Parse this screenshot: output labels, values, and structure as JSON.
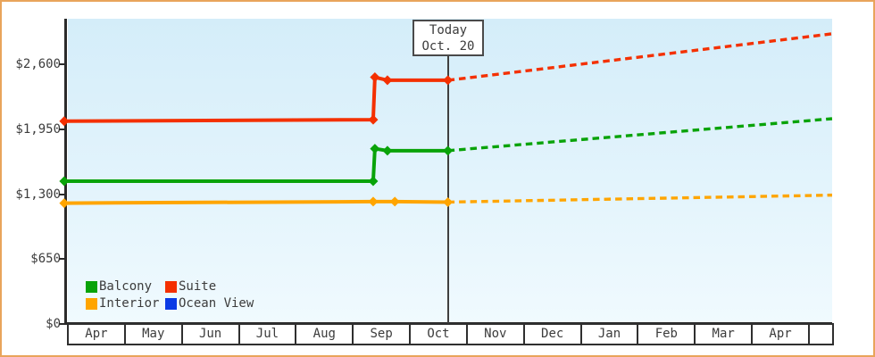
{
  "window": {
    "border_color": "#e9a45b"
  },
  "chart_data": {
    "type": "line",
    "title": "",
    "xlabel": "",
    "ylabel": "",
    "x_categories": [
      "Apr",
      "May",
      "Jun",
      "Jul",
      "Aug",
      "Sep",
      "Oct",
      "Nov",
      "Dec",
      "Jan",
      "Feb",
      "Mar",
      "Apr"
    ],
    "x_unit_note": "point x values are months measured from left edge of first Apr cell",
    "ylim": [
      0,
      3060
    ],
    "y_ticks": [
      {
        "label": "$0",
        "value": 0
      },
      {
        "label": "$650",
        "value": 650
      },
      {
        "label": "$1,300",
        "value": 1300
      },
      {
        "label": "$1,950",
        "value": 1950
      },
      {
        "label": "$2,600",
        "value": 2600
      }
    ],
    "grid": false,
    "legend_position": "bottom-left-inside",
    "today": {
      "line1": "Today",
      "line2": "Oct. 20",
      "month_position": 6.65
    },
    "series": [
      {
        "name": "Balcony",
        "color": "#09a309",
        "marker": "diamond",
        "solid": [
          [
            -0.08,
            1430
          ],
          [
            5.34,
            1430
          ],
          [
            5.37,
            1755
          ],
          [
            5.59,
            1735
          ],
          [
            6.65,
            1735
          ]
        ],
        "dashed": [
          [
            6.65,
            1735
          ],
          [
            13.39,
            2055
          ]
        ]
      },
      {
        "name": "Suite",
        "color": "#f43000",
        "marker": "diamond",
        "solid": [
          [
            -0.08,
            2030
          ],
          [
            5.34,
            2045
          ],
          [
            5.37,
            2470
          ],
          [
            5.59,
            2440
          ],
          [
            6.65,
            2440
          ]
        ],
        "dashed": [
          [
            6.65,
            2440
          ],
          [
            13.39,
            2905
          ]
        ]
      },
      {
        "name": "Interior",
        "color": "#ffa500",
        "marker": "diamond",
        "solid": [
          [
            -0.08,
            1210
          ],
          [
            5.34,
            1225
          ],
          [
            5.72,
            1225
          ],
          [
            6.65,
            1220
          ]
        ],
        "dashed": [
          [
            6.65,
            1220
          ],
          [
            13.39,
            1290
          ]
        ]
      },
      {
        "name": "Ocean View",
        "color": "#0b3be5",
        "marker": "diamond",
        "solid": [],
        "dashed": []
      }
    ]
  }
}
